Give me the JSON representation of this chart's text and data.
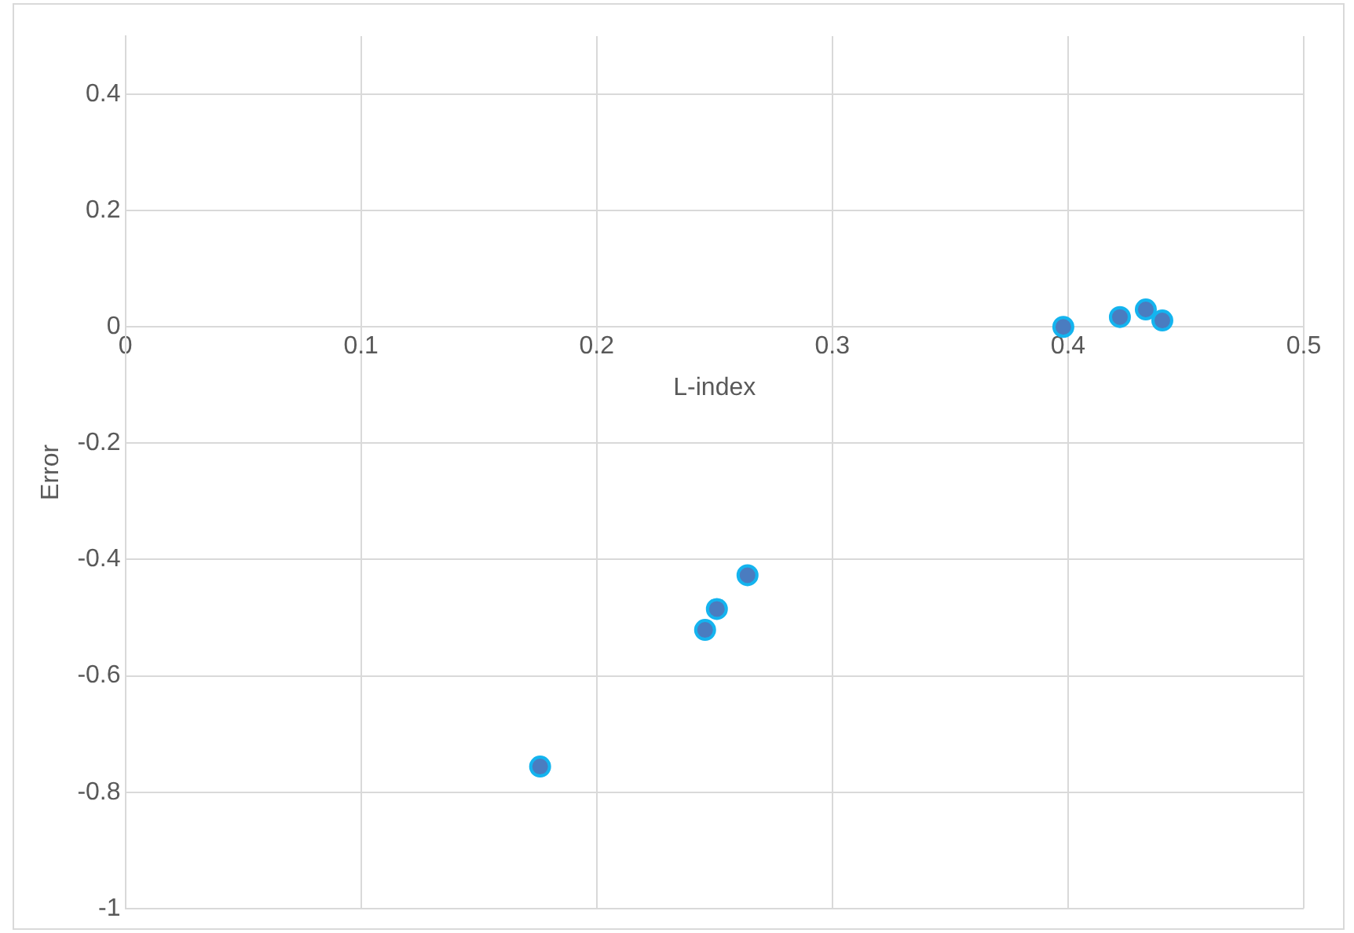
{
  "chart_data": {
    "type": "scatter",
    "xlabel": "L-index",
    "ylabel": "Error",
    "series": [
      {
        "color": "#4a7cc0",
        "x": [
          0.176,
          0.246,
          0.251,
          0.264,
          0.398,
          0.422,
          0.433,
          0.44
        ],
        "values": [
          -0.756,
          -0.521,
          -0.485,
          -0.427,
          0,
          0.017,
          0.03,
          0.011
        ]
      }
    ],
    "xlim": [
      0,
      0.5
    ],
    "xticks": [
      0,
      0.1,
      0.2,
      0.3,
      0.4,
      0.5
    ],
    "ylim": [
      -1,
      0.5
    ],
    "yticks": [
      -1,
      -0.8,
      -0.6,
      -0.4,
      -0.2,
      0,
      0.2,
      0.4
    ],
    "grid": true,
    "legend": false,
    "marker": "circle"
  }
}
